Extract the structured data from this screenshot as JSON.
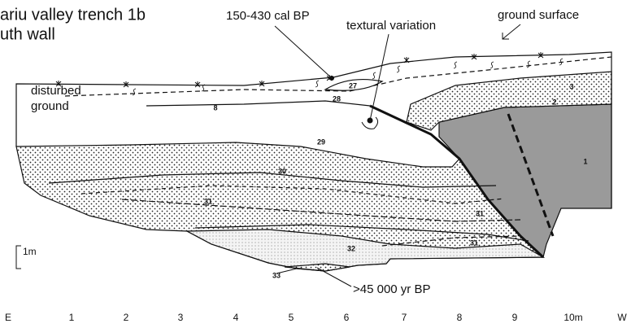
{
  "title": [
    "ariu valley trench 1b",
    "uth wall"
  ],
  "annotations": {
    "date_top": "150-430 cal BP",
    "textural": "textural variation",
    "ground_surface": "ground surface",
    "disturbed": [
      "disturbed",
      "ground"
    ],
    "date_bottom": ">45 000 yr BP",
    "scale": "1m"
  },
  "units": [
    "27",
    "28",
    "8",
    "3",
    "2",
    "1",
    "29",
    "30",
    "31",
    "31",
    "31",
    "32",
    "33"
  ],
  "axis": {
    "left": "E",
    "ticks": [
      "1",
      "2",
      "3",
      "4",
      "5",
      "6",
      "7",
      "8",
      "9",
      "10m"
    ],
    "right": "W"
  }
}
